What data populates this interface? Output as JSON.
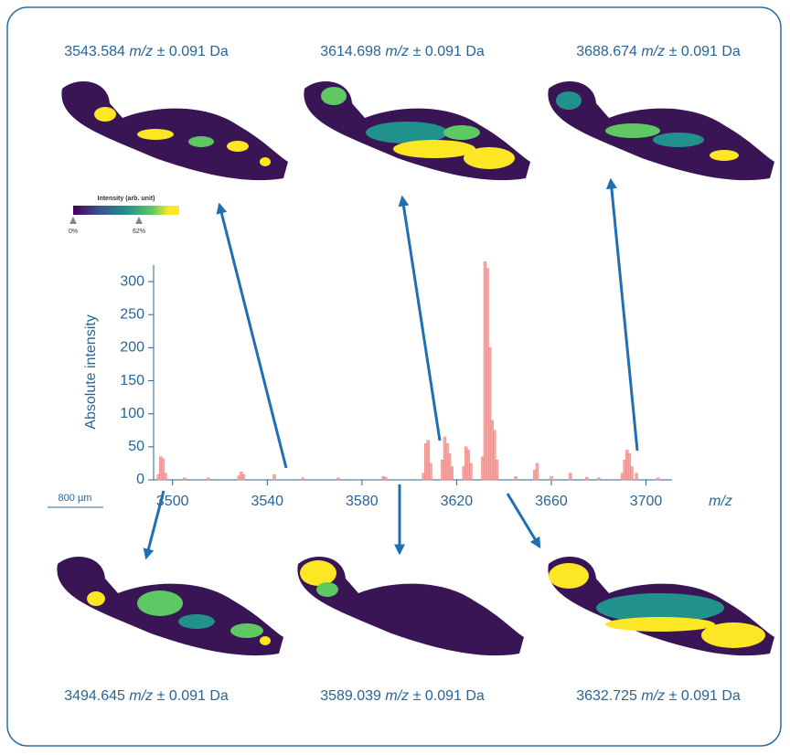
{
  "chart_data": {
    "type": "bar",
    "y_label": "Absolute intensity",
    "x_label": "m/z",
    "x": [
      3494,
      3495,
      3496,
      3497,
      3505,
      3515,
      3528,
      3529,
      3530,
      3543,
      3555,
      3570,
      3589,
      3590,
      3606,
      3607,
      3608,
      3609,
      3614,
      3615,
      3616,
      3617,
      3618,
      3623,
      3624,
      3625,
      3626,
      3631,
      3632,
      3633,
      3634,
      3635,
      3636,
      3637,
      3645,
      3653,
      3654,
      3660,
      3668,
      3675,
      3680,
      3690,
      3691,
      3692,
      3693,
      3694,
      3696,
      3705
    ],
    "values": [
      8,
      35,
      32,
      10,
      3,
      3,
      6,
      12,
      8,
      8,
      3,
      3,
      5,
      4,
      10,
      55,
      60,
      25,
      30,
      65,
      55,
      40,
      20,
      20,
      50,
      45,
      25,
      35,
      330,
      320,
      200,
      90,
      75,
      30,
      5,
      15,
      25,
      5,
      10,
      4,
      3,
      10,
      30,
      45,
      40,
      20,
      10,
      3
    ],
    "color": "#f08a86",
    "xlim": [
      3492,
      3711
    ],
    "ylim": [
      0,
      325
    ],
    "xticks": [
      3500,
      3540,
      3580,
      3620,
      3660,
      3700
    ],
    "yticks": [
      0,
      50,
      100,
      150,
      200,
      250,
      300
    ]
  },
  "images": [
    {
      "mz": "3543.584",
      "unit": "m/z",
      "tolerance": "± 0.091 Da"
    },
    {
      "mz": "3614.698",
      "unit": "m/z",
      "tolerance": "± 0.091 Da"
    },
    {
      "mz": "3688.674",
      "unit": "m/z",
      "tolerance": "± 0.091 Da"
    },
    {
      "mz": "3494.645",
      "unit": "m/z",
      "tolerance": "± 0.091 Da"
    },
    {
      "mz": "3589.039",
      "unit": "m/z",
      "tolerance": "± 0.091 Da"
    },
    {
      "mz": "3632.725",
      "unit": "m/z",
      "tolerance": "± 0.091 Da"
    }
  ],
  "colorbar": {
    "title": "Intensity (arb. unit)",
    "ticks": [
      "0%",
      "62%"
    ]
  },
  "scale_bar": "800 µm"
}
